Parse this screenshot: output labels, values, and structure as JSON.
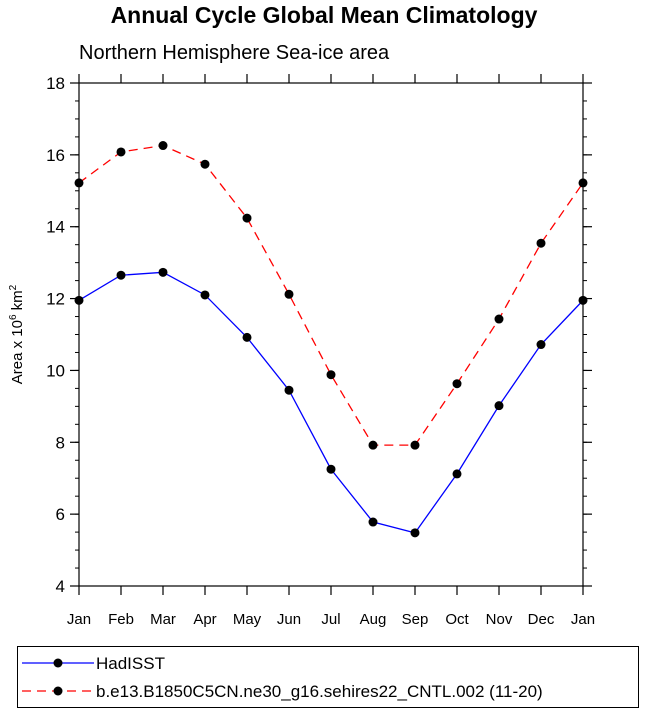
{
  "title": "Annual Cycle Global Mean Climatology",
  "subtitle": "Northern Hemisphere Sea-ice area",
  "chart_data": {
    "type": "line",
    "categories": [
      "Jan",
      "Feb",
      "Mar",
      "Apr",
      "May",
      "Jun",
      "Jul",
      "Aug",
      "Sep",
      "Oct",
      "Nov",
      "Dec",
      "Jan"
    ],
    "ylabel": "Area x 10",
    "ylabel_sup": "6",
    "ylabel_unit": " km",
    "ylabel_sup2": "2",
    "ylim": [
      4,
      18
    ],
    "yticks": [
      4,
      6,
      8,
      10,
      12,
      14,
      16,
      18
    ],
    "grid": false,
    "legend_position": "bottom",
    "series": [
      {
        "name": "HadISST",
        "color": "#0000ff",
        "dash": "solid",
        "values": [
          11.95,
          12.65,
          12.73,
          12.1,
          10.92,
          9.45,
          7.25,
          5.78,
          5.48,
          7.12,
          9.02,
          10.72,
          11.95
        ]
      },
      {
        "name": "b.e13.B1850C5CN.ne30_g16.sehires22_CNTL.002 (11-20)",
        "color": "#ff0000",
        "dash": "dashed",
        "values": [
          15.22,
          16.08,
          16.26,
          15.74,
          14.24,
          12.12,
          9.88,
          7.92,
          7.92,
          9.63,
          11.43,
          13.54,
          15.22
        ]
      }
    ]
  }
}
